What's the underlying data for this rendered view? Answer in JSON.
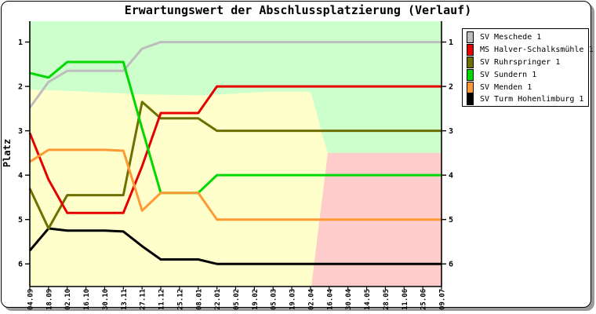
{
  "window": {
    "title": "Erwartungswert der Abschlussplatzierung (Verlauf)"
  },
  "chart_data": {
    "type": "line",
    "title": "Erwartungswert der Abschlussplatzierung (Verlauf)",
    "xlabel": "",
    "ylabel": "Platz",
    "y_ticks": [
      1,
      2,
      3,
      4,
      5,
      6
    ],
    "y_range": [
      0.53,
      6.51
    ],
    "y_inverted": true,
    "grid": "off",
    "legend_position": "top-right-outside",
    "x_labels": [
      "04.09",
      "18.09",
      "02.10",
      "16.10",
      "30.10",
      "13.11",
      "27.11",
      "11.12",
      "25.12",
      "08.01",
      "22.01",
      "05.02",
      "19.02",
      "05.03",
      "19.03",
      "02.04",
      "16.04",
      "30.04",
      "14.05",
      "28.05",
      "11.06",
      "25.06",
      "09.07"
    ],
    "series": [
      {
        "name": "SV Meschede 1",
        "color": "#bdbdbd",
        "values": [
          2.48,
          1.9,
          1.65,
          1.65,
          1.65,
          1.65,
          1.15,
          1,
          1,
          1,
          1,
          1,
          1,
          1,
          1,
          1,
          1,
          1,
          1,
          1,
          1,
          1,
          1
        ]
      },
      {
        "name": "MS Halver-Schalksmühle 1",
        "color": "#e60000",
        "values": [
          3.05,
          4.1,
          4.85,
          4.85,
          4.85,
          4.85,
          3.8,
          2.6,
          2.6,
          2.6,
          2,
          2,
          2,
          2,
          2,
          2,
          2,
          2,
          2,
          2,
          2,
          2,
          2
        ]
      },
      {
        "name": "SV Ruhrspringer 1",
        "color": "#6f6f00",
        "values": [
          4.3,
          5.2,
          4.45,
          4.45,
          4.45,
          4.45,
          2.35,
          2.72,
          2.72,
          2.72,
          3,
          3,
          3,
          3,
          3,
          3,
          3,
          3,
          3,
          3,
          3,
          3,
          3
        ]
      },
      {
        "name": "SV Sundern 1",
        "color": "#00d900",
        "values": [
          1.7,
          1.8,
          1.45,
          1.45,
          1.45,
          1.45,
          2.95,
          4.4,
          4.4,
          4.4,
          4,
          4,
          4,
          4,
          4,
          4,
          4,
          4,
          4,
          4,
          4,
          4,
          4
        ]
      },
      {
        "name": "SV Menden 1",
        "color": "#ff9933",
        "values": [
          3.7,
          3.43,
          3.43,
          3.43,
          3.43,
          3.45,
          4.8,
          4.4,
          4.4,
          4.4,
          5,
          5,
          5,
          5,
          5,
          5,
          5,
          5,
          5,
          5,
          5,
          5,
          5
        ]
      },
      {
        "name": "SV Turm Hohenlimburg 1",
        "color": "#000000",
        "values": [
          5.7,
          5.2,
          5.25,
          5.25,
          5.25,
          5.27,
          5.6,
          5.9,
          5.9,
          5.9,
          6,
          6,
          6,
          6,
          6,
          6,
          6,
          6,
          6,
          6,
          6,
          6,
          6
        ]
      }
    ],
    "draw_order": [
      0,
      5,
      2,
      1,
      3,
      4
    ],
    "zones": [
      {
        "name": "zone-yellow",
        "color": "#ffffcc",
        "points": [
          [
            0,
            0.53
          ],
          [
            22,
            0.53
          ],
          [
            22,
            6.51
          ],
          [
            0,
            6.51
          ]
        ]
      },
      {
        "name": "zone-green",
        "color": "#ccffcc",
        "points": [
          [
            0,
            0.53
          ],
          [
            22,
            0.53
          ],
          [
            22,
            3.5
          ],
          [
            15.93,
            3.5
          ],
          [
            15.6,
            3.05
          ],
          [
            15.3,
            2.55
          ],
          [
            15.0,
            2.12
          ],
          [
            12.66,
            2.12
          ],
          [
            9.3,
            2.2
          ],
          [
            5.95,
            2.18
          ],
          [
            2.6,
            2.11
          ],
          [
            0,
            2.07
          ]
        ]
      },
      {
        "name": "zone-pink",
        "color": "#ffcccc",
        "points": [
          [
            22,
            3.5
          ],
          [
            22,
            6.51
          ],
          [
            15.05,
            6.51
          ],
          [
            15.45,
            5.1
          ],
          [
            15.93,
            3.5
          ]
        ]
      }
    ]
  }
}
